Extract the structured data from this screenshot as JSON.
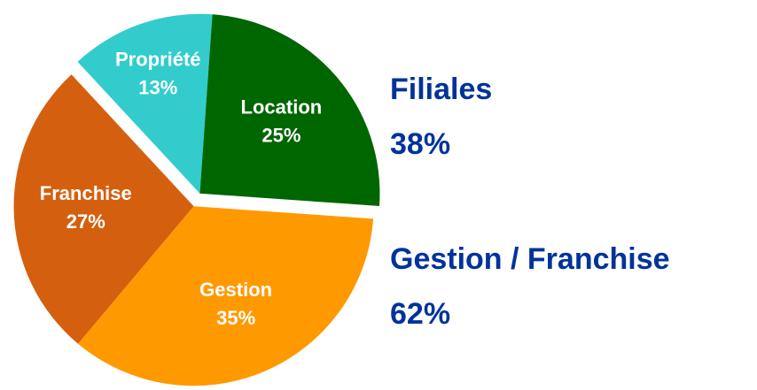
{
  "chart_data": {
    "type": "pie",
    "categories": [
      "Propriété",
      "Location",
      "Gestion",
      "Franchise"
    ],
    "values": [
      13,
      25,
      35,
      27
    ],
    "value_labels": [
      "13%",
      "25%",
      "35%",
      "27%"
    ],
    "colors": [
      "#33cccc",
      "#006600",
      "#ff9900",
      "#d4600f"
    ],
    "groups": {
      "names": [
        "Filiales",
        "Gestion / Franchise"
      ],
      "values": [
        38,
        62
      ],
      "value_labels": [
        "38%",
        "62%"
      ]
    }
  }
}
